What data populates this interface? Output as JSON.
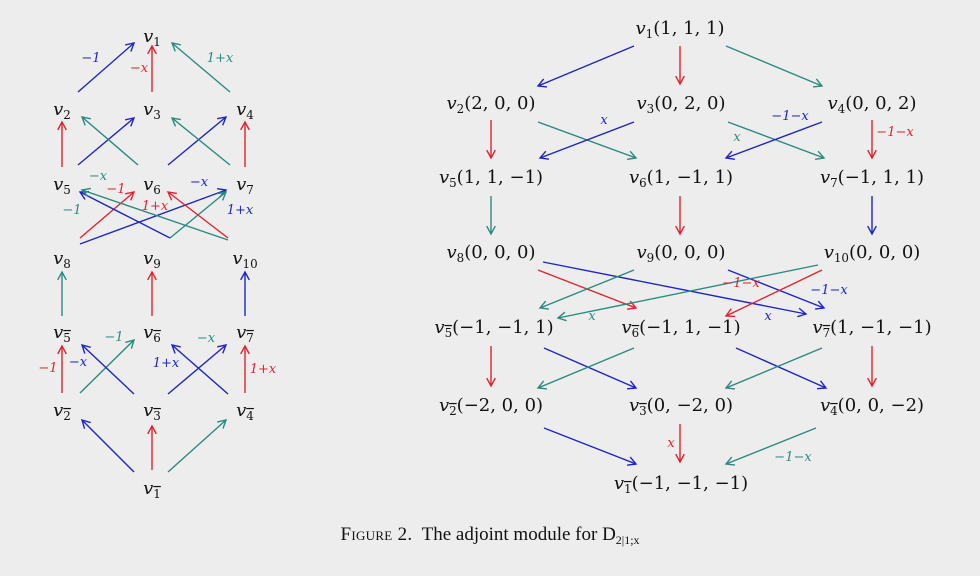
{
  "colors": {
    "red": "#e0242e",
    "blue": "#1f25c4",
    "teal": "#2a8a80",
    "ink": "#111111"
  },
  "caption": {
    "label": "Figure 2.",
    "text": "The adjoint module for D",
    "subscript": "2|1;x"
  },
  "left_diagram": {
    "nodes": [
      {
        "id": "v1",
        "base": "v",
        "sub": "1"
      },
      {
        "id": "v2",
        "base": "v",
        "sub": "2"
      },
      {
        "id": "v3",
        "base": "v",
        "sub": "3"
      },
      {
        "id": "v4",
        "base": "v",
        "sub": "4"
      },
      {
        "id": "v5",
        "base": "v",
        "sub": "5"
      },
      {
        "id": "v6",
        "base": "v",
        "sub": "6"
      },
      {
        "id": "v7",
        "base": "v",
        "sub": "7"
      },
      {
        "id": "v8",
        "base": "v",
        "sub": "8"
      },
      {
        "id": "v9",
        "base": "v",
        "sub": "9"
      },
      {
        "id": "v10",
        "base": "v",
        "sub": "10"
      },
      {
        "id": "v5b",
        "base": "v",
        "sub": "5",
        "bar": true
      },
      {
        "id": "v6b",
        "base": "v",
        "sub": "6",
        "bar": true
      },
      {
        "id": "v7b",
        "base": "v",
        "sub": "7",
        "bar": true
      },
      {
        "id": "v2b",
        "base": "v",
        "sub": "2",
        "bar": true
      },
      {
        "id": "v3b",
        "base": "v",
        "sub": "3",
        "bar": true
      },
      {
        "id": "v4b",
        "base": "v",
        "sub": "4",
        "bar": true
      },
      {
        "id": "v1b",
        "base": "v",
        "sub": "1",
        "bar": true
      }
    ],
    "edges": [
      {
        "from": "v2",
        "to": "v1",
        "color": "blue",
        "label": "−1"
      },
      {
        "from": "v3",
        "to": "v1",
        "color": "red",
        "label": "−x"
      },
      {
        "from": "v4",
        "to": "v1",
        "color": "teal",
        "label": "1+x"
      },
      {
        "from": "v5",
        "to": "v2",
        "color": "red",
        "label": ""
      },
      {
        "from": "v5",
        "to": "v3",
        "color": "blue",
        "label": ""
      },
      {
        "from": "v6",
        "to": "v2",
        "color": "teal",
        "label": ""
      },
      {
        "from": "v6",
        "to": "v4",
        "color": "blue",
        "label": ""
      },
      {
        "from": "v7",
        "to": "v3",
        "color": "teal",
        "label": ""
      },
      {
        "from": "v7",
        "to": "v4",
        "color": "red",
        "label": ""
      },
      {
        "from": "v8",
        "to": "v6",
        "color": "red",
        "label": ""
      },
      {
        "from": "v8",
        "to": "v7",
        "color": "blue",
        "label": ""
      },
      {
        "from": "v9",
        "to": "v5",
        "color": "teal",
        "label": ""
      },
      {
        "from": "v9",
        "to": "v7",
        "color": "blue",
        "label": ""
      },
      {
        "from": "v10",
        "to": "v5",
        "color": "teal",
        "label": ""
      },
      {
        "from": "v10",
        "to": "v6",
        "color": "red",
        "label": ""
      },
      {
        "from": "v5b",
        "to": "v8",
        "color": "teal",
        "label": ""
      },
      {
        "from": "v6b",
        "to": "v9",
        "color": "red",
        "label": ""
      },
      {
        "from": "v7b",
        "to": "v10",
        "color": "blue",
        "label": ""
      },
      {
        "from": "v2b",
        "to": "v5b",
        "color": "red",
        "label": "−1"
      },
      {
        "from": "v2b",
        "to": "v6b",
        "color": "teal",
        "label": "−1"
      },
      {
        "from": "v3b",
        "to": "v5b",
        "color": "blue",
        "label": "−x"
      },
      {
        "from": "v3b",
        "to": "v7b",
        "color": "blue",
        "label": "1+x"
      },
      {
        "from": "v4b",
        "to": "v6b",
        "color": "blue",
        "label": ""
      },
      {
        "from": "v4b",
        "to": "v7b",
        "color": "red",
        "label": "1+x"
      },
      {
        "from": "v1b",
        "to": "v2b",
        "color": "blue",
        "label": ""
      },
      {
        "from": "v1b",
        "to": "v3b",
        "color": "red",
        "label": ""
      },
      {
        "from": "v1b",
        "to": "v4b",
        "color": "teal",
        "label": ""
      }
    ],
    "floating_labels": [
      {
        "text": "−x",
        "color": "teal"
      },
      {
        "text": "−1",
        "color": "red"
      },
      {
        "text": "−1",
        "color": "teal"
      },
      {
        "text": "1+x",
        "color": "red"
      },
      {
        "text": "−x",
        "color": "blue"
      },
      {
        "text": "1+x",
        "color": "blue"
      },
      {
        "text": "−x",
        "color": "teal"
      }
    ]
  },
  "right_diagram": {
    "nodes": [
      {
        "id": "v1",
        "base": "v",
        "sub": "1",
        "coords": "(1, 1, 1)"
      },
      {
        "id": "v2",
        "base": "v",
        "sub": "2",
        "coords": "(2, 0, 0)"
      },
      {
        "id": "v3",
        "base": "v",
        "sub": "3",
        "coords": "(0, 2, 0)"
      },
      {
        "id": "v4",
        "base": "v",
        "sub": "4",
        "coords": "(0, 0, 2)"
      },
      {
        "id": "v5",
        "base": "v",
        "sub": "5",
        "coords": "(1, 1, −1)"
      },
      {
        "id": "v6",
        "base": "v",
        "sub": "6",
        "coords": "(1, −1, 1)"
      },
      {
        "id": "v7",
        "base": "v",
        "sub": "7",
        "coords": "(−1, 1, 1)"
      },
      {
        "id": "v8",
        "base": "v",
        "sub": "8",
        "coords": "(0, 0, 0)"
      },
      {
        "id": "v9",
        "base": "v",
        "sub": "9",
        "coords": "(0, 0, 0)"
      },
      {
        "id": "v10",
        "base": "v",
        "sub": "10",
        "coords": "(0, 0, 0)"
      },
      {
        "id": "v5b",
        "base": "v",
        "sub": "5",
        "bar": true,
        "coords": "(−1, −1, 1)"
      },
      {
        "id": "v6b",
        "base": "v",
        "sub": "6",
        "bar": true,
        "coords": "(−1, 1, −1)"
      },
      {
        "id": "v7b",
        "base": "v",
        "sub": "7",
        "bar": true,
        "coords": "(1, −1, −1)"
      },
      {
        "id": "v2b",
        "base": "v",
        "sub": "2",
        "bar": true,
        "coords": "(−2, 0, 0)"
      },
      {
        "id": "v3b",
        "base": "v",
        "sub": "3",
        "bar": true,
        "coords": "(0, −2, 0)"
      },
      {
        "id": "v4b",
        "base": "v",
        "sub": "4",
        "bar": true,
        "coords": "(0, 0, −2)"
      },
      {
        "id": "v1b",
        "base": "v",
        "sub": "1",
        "bar": true,
        "coords": "(−1, −1, −1)"
      }
    ],
    "edges": [
      {
        "from": "v1",
        "to": "v2",
        "color": "blue",
        "label": ""
      },
      {
        "from": "v1",
        "to": "v3",
        "color": "red",
        "label": ""
      },
      {
        "from": "v1",
        "to": "v4",
        "color": "teal",
        "label": ""
      },
      {
        "from": "v2",
        "to": "v5",
        "color": "red",
        "label": ""
      },
      {
        "from": "v2",
        "to": "v6",
        "color": "teal",
        "label": ""
      },
      {
        "from": "v3",
        "to": "v5",
        "color": "blue",
        "label": "x"
      },
      {
        "from": "v3",
        "to": "v7",
        "color": "teal",
        "label": "x"
      },
      {
        "from": "v4",
        "to": "v6",
        "color": "blue",
        "label": "−1−x"
      },
      {
        "from": "v4",
        "to": "v7",
        "color": "red",
        "label": "−1−x"
      },
      {
        "from": "v5",
        "to": "v8",
        "color": "teal",
        "label": ""
      },
      {
        "from": "v6",
        "to": "v9",
        "color": "red",
        "label": ""
      },
      {
        "from": "v7",
        "to": "v10",
        "color": "blue",
        "label": ""
      },
      {
        "from": "v8",
        "to": "v6b",
        "color": "red",
        "label": ""
      },
      {
        "from": "v8",
        "to": "v7b",
        "color": "blue",
        "label": ""
      },
      {
        "from": "v9",
        "to": "v5b",
        "color": "teal",
        "label": ""
      },
      {
        "from": "v9",
        "to": "v7b",
        "color": "blue",
        "label": "−1−x"
      },
      {
        "from": "v10",
        "to": "v5b",
        "color": "teal",
        "label": "x"
      },
      {
        "from": "v10",
        "to": "v6b",
        "color": "red",
        "label": "−1−x"
      },
      {
        "from": "v5b",
        "to": "v2b",
        "color": "red",
        "label": ""
      },
      {
        "from": "v5b",
        "to": "v3b",
        "color": "blue",
        "label": ""
      },
      {
        "from": "v6b",
        "to": "v2b",
        "color": "teal",
        "label": ""
      },
      {
        "from": "v6b",
        "to": "v4b",
        "color": "blue",
        "label": ""
      },
      {
        "from": "v7b",
        "to": "v3b",
        "color": "teal",
        "label": ""
      },
      {
        "from": "v7b",
        "to": "v4b",
        "color": "red",
        "label": ""
      },
      {
        "from": "v2b",
        "to": "v1b",
        "color": "blue",
        "label": ""
      },
      {
        "from": "v3b",
        "to": "v1b",
        "color": "red",
        "label": "x"
      },
      {
        "from": "v4b",
        "to": "v1b",
        "color": "teal",
        "label": "−1−x"
      }
    ],
    "floating_labels": [
      {
        "text": "x",
        "color": "blue"
      }
    ]
  }
}
